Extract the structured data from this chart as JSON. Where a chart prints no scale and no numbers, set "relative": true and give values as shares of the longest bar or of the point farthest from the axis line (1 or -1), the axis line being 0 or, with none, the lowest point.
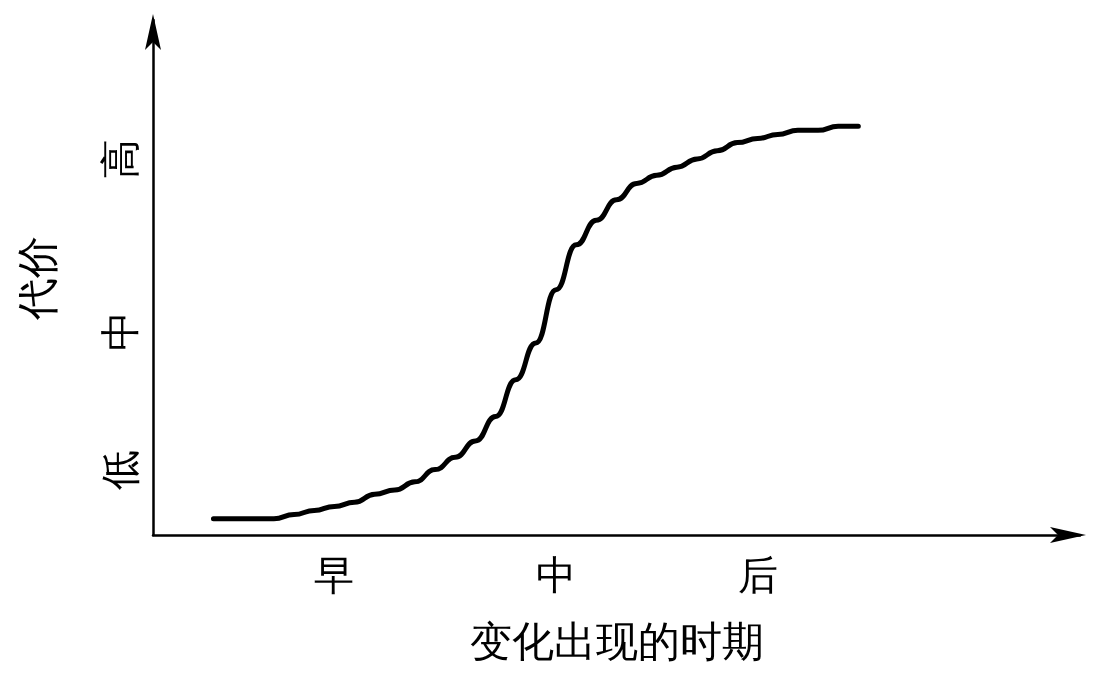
{
  "chart_data": {
    "type": "line",
    "relative": true,
    "xlabel": "变化出现的时期",
    "ylabel": "代价",
    "color": "#000000",
    "marker": "none",
    "categories": [
      null,
      null,
      null,
      null,
      null,
      null,
      null,
      null,
      null,
      "早",
      null,
      null,
      null,
      null,
      null,
      null,
      null,
      null,
      null,
      null,
      "中",
      null,
      null,
      null,
      null,
      null,
      null,
      null,
      null,
      null,
      "后",
      null,
      null,
      null,
      null,
      null,
      null,
      null,
      null,
      null,
      null,
      null,
      null,
      null,
      null,
      null,
      null
    ],
    "values": [
      null,
      null,
      null,
      0.04,
      0.04,
      0.04,
      0.04,
      0.05,
      0.06,
      0.07,
      0.08,
      0.1,
      0.11,
      0.13,
      0.16,
      0.19,
      0.23,
      0.29,
      0.38,
      0.47,
      0.6,
      0.71,
      0.77,
      0.82,
      0.86,
      0.88,
      0.9,
      0.92,
      0.94,
      0.96,
      0.97,
      0.98,
      0.99,
      0.99,
      1,
      1,
      null,
      null,
      null,
      null,
      null,
      null,
      null,
      null,
      null,
      null,
      null
    ],
    "annotations": [
      "低",
      "中",
      "高"
    ]
  }
}
